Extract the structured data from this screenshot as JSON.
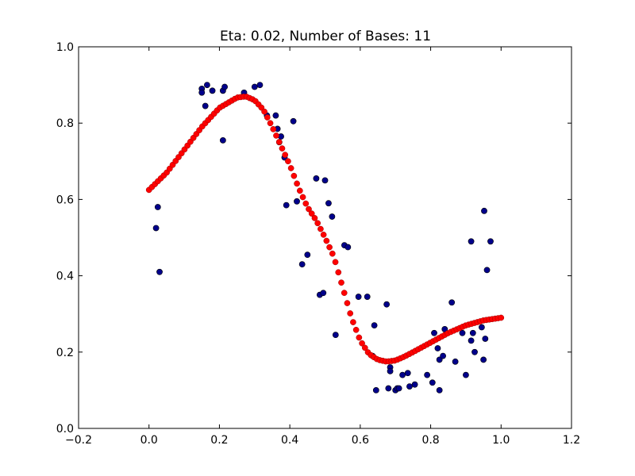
{
  "chart_data": {
    "type": "scatter",
    "title": "Eta: 0.02, Number of Bases: 11",
    "xlabel": "",
    "ylabel": "",
    "xlim": [
      -0.2,
      1.2
    ],
    "ylim": [
      0.0,
      1.0
    ],
    "x_ticks": [
      -0.2,
      0.0,
      0.2,
      0.4,
      0.6,
      0.8,
      1.0,
      1.2
    ],
    "x_tick_labels": [
      "−0.2",
      "0.0",
      "0.2",
      "0.4",
      "0.6",
      "0.8",
      "1.0",
      "1.2"
    ],
    "y_ticks": [
      0.0,
      0.2,
      0.4,
      0.6,
      0.8,
      1.0
    ],
    "y_tick_labels": [
      "0.0",
      "0.2",
      "0.4",
      "0.6",
      "0.8",
      "1.0"
    ],
    "grid": false,
    "legend": "none",
    "series": [
      {
        "color": "#00008b",
        "points": [
          [
            0.02,
            0.525
          ],
          [
            0.025,
            0.58
          ],
          [
            0.03,
            0.41
          ],
          [
            0.15,
            0.89
          ],
          [
            0.15,
            0.88
          ],
          [
            0.16,
            0.845
          ],
          [
            0.165,
            0.9
          ],
          [
            0.18,
            0.885
          ],
          [
            0.21,
            0.885
          ],
          [
            0.215,
            0.895
          ],
          [
            0.21,
            0.755
          ],
          [
            0.27,
            0.88
          ],
          [
            0.3,
            0.895
          ],
          [
            0.315,
            0.9
          ],
          [
            0.335,
            0.82
          ],
          [
            0.36,
            0.82
          ],
          [
            0.365,
            0.785
          ],
          [
            0.37,
            0.75
          ],
          [
            0.375,
            0.765
          ],
          [
            0.385,
            0.71
          ],
          [
            0.39,
            0.585
          ],
          [
            0.41,
            0.805
          ],
          [
            0.42,
            0.595
          ],
          [
            0.435,
            0.43
          ],
          [
            0.45,
            0.455
          ],
          [
            0.475,
            0.655
          ],
          [
            0.485,
            0.35
          ],
          [
            0.495,
            0.355
          ],
          [
            0.5,
            0.65
          ],
          [
            0.51,
            0.59
          ],
          [
            0.52,
            0.555
          ],
          [
            0.53,
            0.245
          ],
          [
            0.555,
            0.48
          ],
          [
            0.565,
            0.475
          ],
          [
            0.595,
            0.345
          ],
          [
            0.62,
            0.345
          ],
          [
            0.635,
            0.19
          ],
          [
            0.64,
            0.27
          ],
          [
            0.645,
            0.1
          ],
          [
            0.675,
            0.325
          ],
          [
            0.68,
            0.105
          ],
          [
            0.685,
            0.16
          ],
          [
            0.685,
            0.15
          ],
          [
            0.7,
            0.1
          ],
          [
            0.705,
            0.105
          ],
          [
            0.71,
            0.105
          ],
          [
            0.72,
            0.14
          ],
          [
            0.735,
            0.145
          ],
          [
            0.74,
            0.11
          ],
          [
            0.755,
            0.115
          ],
          [
            0.79,
            0.14
          ],
          [
            0.805,
            0.12
          ],
          [
            0.81,
            0.25
          ],
          [
            0.825,
            0.1
          ],
          [
            0.82,
            0.21
          ],
          [
            0.825,
            0.18
          ],
          [
            0.835,
            0.19
          ],
          [
            0.84,
            0.26
          ],
          [
            0.86,
            0.33
          ],
          [
            0.87,
            0.175
          ],
          [
            0.89,
            0.25
          ],
          [
            0.9,
            0.14
          ],
          [
            0.915,
            0.23
          ],
          [
            0.915,
            0.49
          ],
          [
            0.92,
            0.25
          ],
          [
            0.925,
            0.2
          ],
          [
            0.945,
            0.265
          ],
          [
            0.95,
            0.18
          ],
          [
            0.952,
            0.57
          ],
          [
            0.955,
            0.235
          ],
          [
            0.96,
            0.415
          ],
          [
            0.97,
            0.49
          ]
        ]
      },
      {
        "color": "#ff0000",
        "curve_points": [
          [
            0.0,
            0.625
          ],
          [
            0.05,
            0.67
          ],
          [
            0.1,
            0.73
          ],
          [
            0.15,
            0.79
          ],
          [
            0.2,
            0.84
          ],
          [
            0.25,
            0.867
          ],
          [
            0.275,
            0.87
          ],
          [
            0.3,
            0.86
          ],
          [
            0.325,
            0.835
          ],
          [
            0.35,
            0.79
          ],
          [
            0.375,
            0.74
          ],
          [
            0.4,
            0.69
          ],
          [
            0.425,
            0.63
          ],
          [
            0.45,
            0.58
          ],
          [
            0.475,
            0.545
          ],
          [
            0.5,
            0.5
          ],
          [
            0.525,
            0.45
          ],
          [
            0.55,
            0.37
          ],
          [
            0.575,
            0.29
          ],
          [
            0.6,
            0.23
          ],
          [
            0.625,
            0.195
          ],
          [
            0.65,
            0.18
          ],
          [
            0.675,
            0.175
          ],
          [
            0.7,
            0.178
          ],
          [
            0.725,
            0.188
          ],
          [
            0.75,
            0.2
          ],
          [
            0.8,
            0.225
          ],
          [
            0.85,
            0.25
          ],
          [
            0.9,
            0.27
          ],
          [
            0.95,
            0.283
          ],
          [
            1.0,
            0.29
          ]
        ],
        "sample_count": 120
      }
    ]
  }
}
